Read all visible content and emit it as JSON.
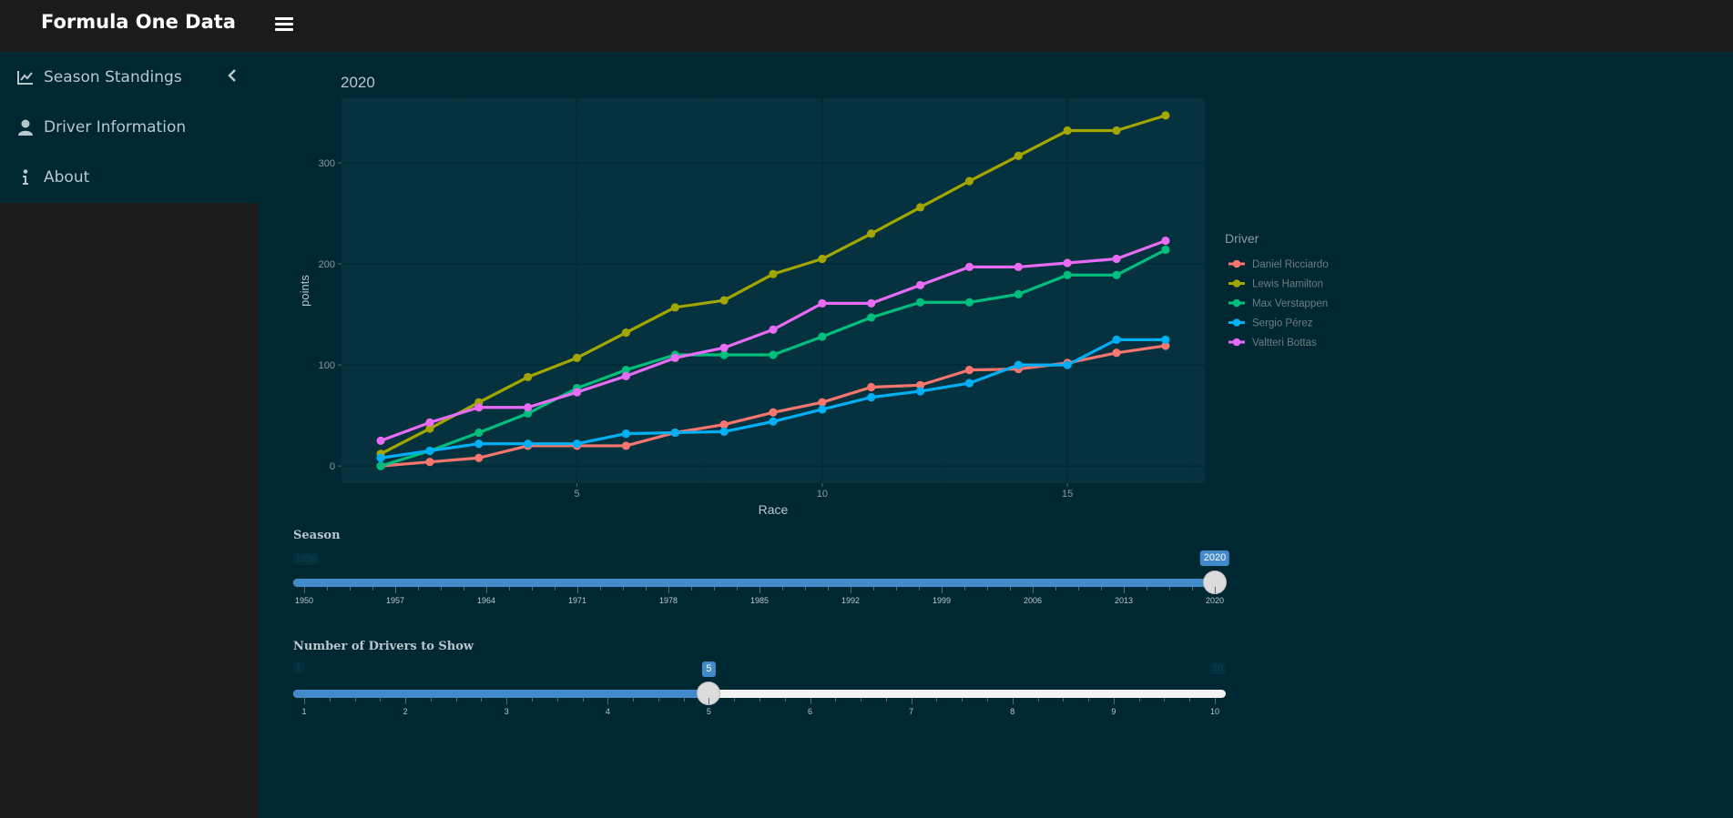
{
  "app": {
    "title": "Formula One Data"
  },
  "sidebar": {
    "items": [
      {
        "label": "Season Standings",
        "icon": "chart-line-icon"
      },
      {
        "label": "Driver Information",
        "icon": "user-icon"
      },
      {
        "label": "About",
        "icon": "info-icon"
      }
    ]
  },
  "chart_data": {
    "type": "line",
    "title": "2020",
    "xlabel": "Race",
    "ylabel": "points",
    "xlim": [
      0.2,
      17.8
    ],
    "ylim": [
      -17,
      364
    ],
    "x_ticks": [
      5,
      10,
      15
    ],
    "y_ticks": [
      0,
      100,
      200,
      300
    ],
    "legend_title": "Driver",
    "legend_position": "right",
    "grid": true,
    "x": [
      1,
      2,
      3,
      4,
      5,
      6,
      7,
      8,
      9,
      10,
      11,
      12,
      13,
      14,
      15,
      16,
      17
    ],
    "series": [
      {
        "name": "Daniel Ricciardo",
        "color": "#f8766d",
        "values": [
          0,
          4,
          8,
          20,
          20,
          20,
          33,
          41,
          53,
          63,
          78,
          80,
          95,
          96,
          102,
          112,
          119
        ]
      },
      {
        "name": "Lewis Hamilton",
        "color": "#a3a500",
        "values": [
          12,
          37,
          63,
          88,
          107,
          132,
          157,
          164,
          190,
          205,
          230,
          256,
          282,
          307,
          332,
          332,
          347
        ]
      },
      {
        "name": "Max Verstappen",
        "color": "#00bf7d",
        "values": [
          0,
          15,
          33,
          52,
          77,
          95,
          110,
          110,
          110,
          128,
          147,
          162,
          162,
          170,
          189,
          189,
          214
        ]
      },
      {
        "name": "Sergio Pérez",
        "color": "#00b0f6",
        "values": [
          8,
          15,
          22,
          22,
          22,
          32,
          33,
          34,
          44,
          56,
          68,
          74,
          82,
          100,
          100,
          125,
          125
        ]
      },
      {
        "name": "Valtteri Bottas",
        "color": "#e76bf3",
        "values": [
          25,
          43,
          58,
          58,
          73,
          89,
          107,
          117,
          135,
          161,
          161,
          179,
          197,
          197,
          201,
          205,
          223
        ]
      }
    ]
  },
  "season_slider": {
    "label": "Season",
    "min": "1950",
    "max": "2020",
    "value": "2020",
    "min_value": 1950,
    "max_value": 2020,
    "current": 2020,
    "ticks": [
      "1950",
      "1957",
      "1964",
      "1971",
      "1978",
      "1985",
      "1992",
      "1999",
      "2006",
      "2013",
      "2020"
    ]
  },
  "drivers_slider": {
    "label": "Number of Drivers to Show",
    "min": "1",
    "max": "10",
    "value": "5",
    "min_value": 1,
    "max_value": 10,
    "current": 5,
    "ticks": [
      "1",
      "2",
      "3",
      "4",
      "5",
      "6",
      "7",
      "8",
      "9",
      "10"
    ]
  }
}
